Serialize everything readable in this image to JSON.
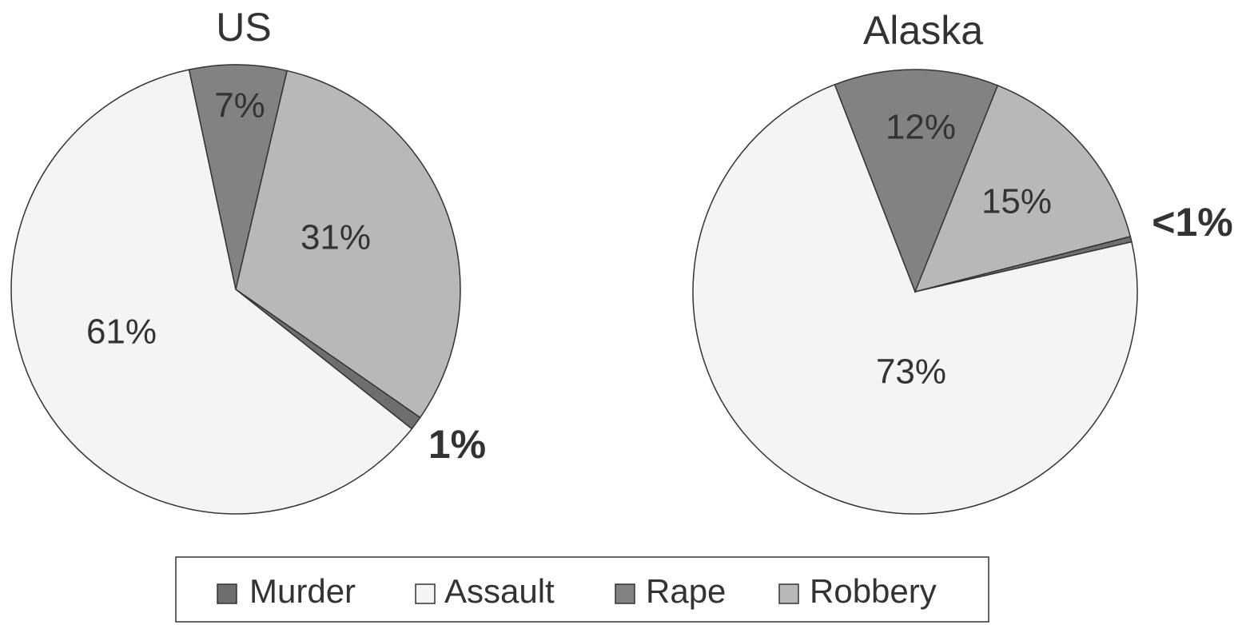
{
  "chart_data": [
    {
      "type": "pie",
      "title": "US",
      "categories": [
        "Murder",
        "Assault",
        "Rape",
        "Robbery"
      ],
      "values": [
        1,
        61,
        7,
        31
      ],
      "value_labels": [
        "1%",
        "61%",
        "7%",
        "31%"
      ],
      "colors": [
        "#6e6e6e",
        "#f4f4f4",
        "#828282",
        "#b8b8b8"
      ],
      "legend": "bottom"
    },
    {
      "type": "pie",
      "title": "Alaska",
      "categories": [
        "Murder",
        "Assault",
        "Rape",
        "Robbery"
      ],
      "values": [
        0.4,
        73,
        12,
        15
      ],
      "value_labels": [
        "<1%",
        "73%",
        "12%",
        "15%"
      ],
      "colors": [
        "#6e6e6e",
        "#f4f4f4",
        "#828282",
        "#b8b8b8"
      ],
      "legend": "bottom"
    }
  ]
}
